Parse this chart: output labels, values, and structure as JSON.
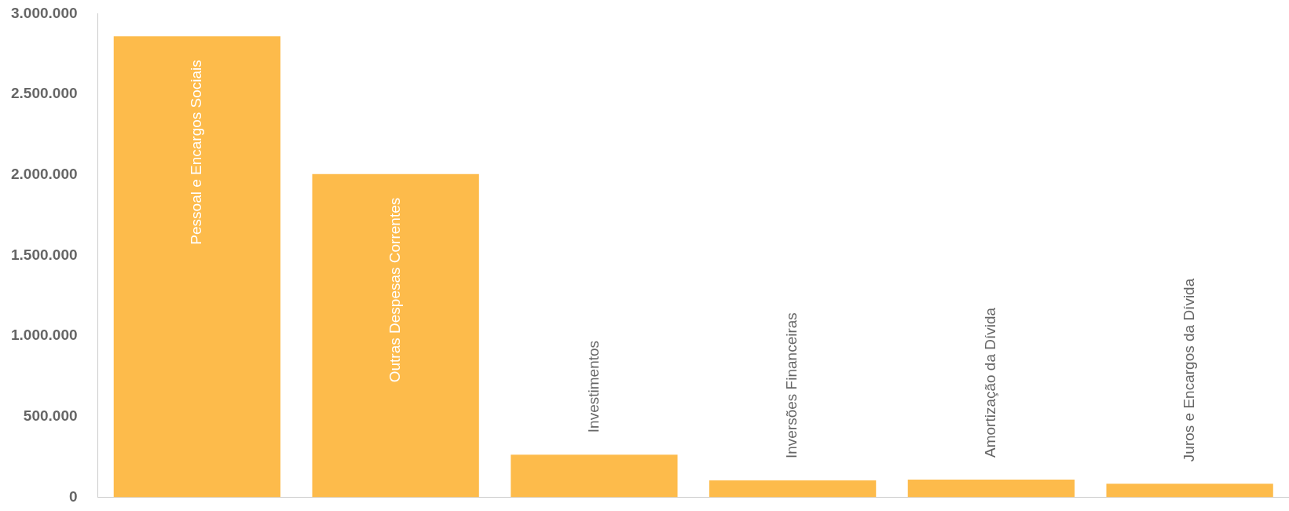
{
  "chart_data": {
    "type": "bar",
    "categories": [
      "Pessoal e Encargos Sociais",
      "Outras Despesas Correntes",
      "Investimentos",
      "Inversões Financeiras",
      "Amortização da Dívida",
      "Juros e Encargos da Dívida"
    ],
    "values": [
      2860000,
      2005000,
      265000,
      105000,
      110000,
      85000
    ],
    "color": "#fdbb4b",
    "ylim": [
      0,
      3000000
    ],
    "yticks": [
      {
        "value": 0,
        "label": "0"
      },
      {
        "value": 500000,
        "label": "500.000"
      },
      {
        "value": 1000000,
        "label": "1.000.000"
      },
      {
        "value": 1500000,
        "label": "1.500.000"
      },
      {
        "value": 2000000,
        "label": "2.000.000"
      },
      {
        "value": 2500000,
        "label": "2.500.000"
      },
      {
        "value": 3000000,
        "label": "3.000.000"
      }
    ],
    "grid": false,
    "tick_labels": "y"
  }
}
